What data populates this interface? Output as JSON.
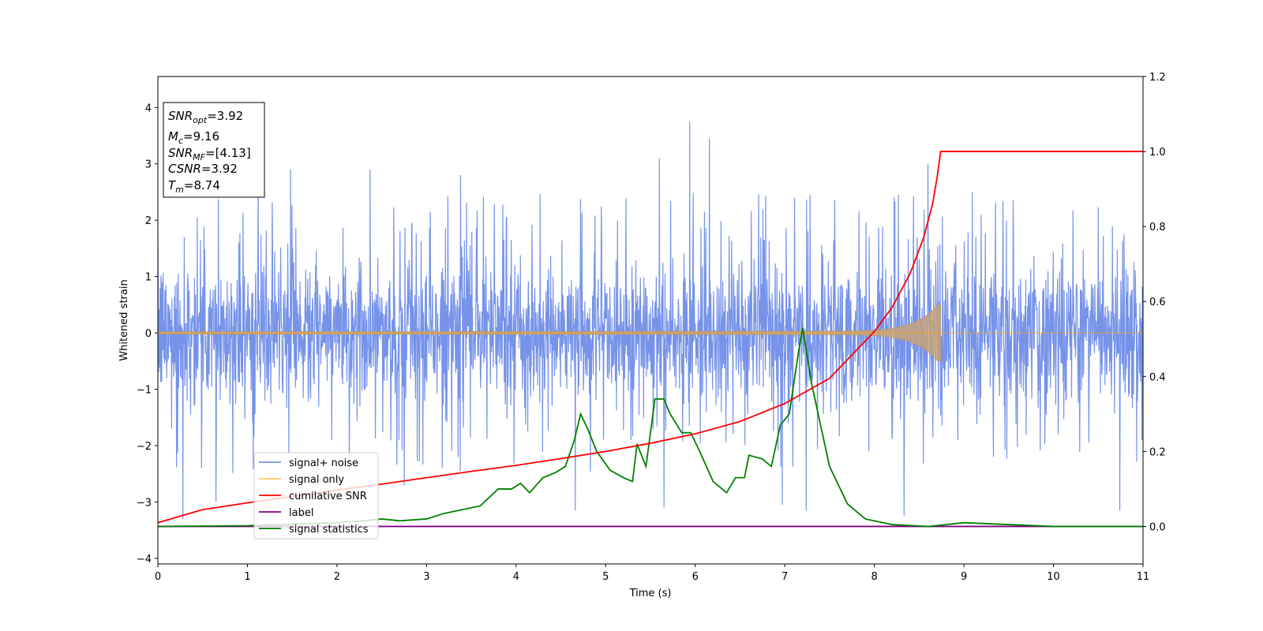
{
  "chart_data": {
    "type": "line",
    "xlabel": "Time (s)",
    "ylabel": "Whitened strain",
    "xlim": [
      0,
      11
    ],
    "ylim_left": [
      -4.1,
      4.55
    ],
    "ylim_right": [
      -0.1,
      1.2
    ],
    "x_ticks": [
      0,
      1,
      2,
      3,
      4,
      5,
      6,
      7,
      8,
      9,
      10,
      11
    ],
    "y_ticks_left": [
      -4,
      -3,
      -2,
      -1,
      0,
      1,
      2,
      3,
      4
    ],
    "y_ticks_right": [
      0.0,
      0.2,
      0.4,
      0.6,
      0.8,
      1.0,
      1.2
    ],
    "grid": false,
    "legend_position": "lower-left",
    "info_box": {
      "lines": [
        {
          "base": "SNR",
          "sub": "opt",
          "rest": "=3.92"
        },
        {
          "base": "M",
          "sub": "c",
          "rest": "=9.16"
        },
        {
          "base": "SNR",
          "sub": "MF",
          "rest": "=[4.13]"
        },
        {
          "base": "CSNR",
          "sub": "",
          "rest": "=3.92"
        },
        {
          "base": "T",
          "sub": "m",
          "rest": "=8.74"
        }
      ]
    },
    "series": [
      {
        "name": "signal+ noise",
        "axis": "left",
        "color": "#4169e1",
        "description_values": "approximately zero-mean noise, dense band within about ±1.4 with spikes up to about 3.75 and down to about -3.3",
        "spikes": [
          {
            "x": 0.28,
            "y": -3.3
          },
          {
            "x": 0.65,
            "y": -3.0
          },
          {
            "x": 1.12,
            "y": 2.7
          },
          {
            "x": 1.48,
            "y": 2.9
          },
          {
            "x": 2.37,
            "y": 2.9
          },
          {
            "x": 2.75,
            "y": -2.7
          },
          {
            "x": 3.38,
            "y": 2.8
          },
          {
            "x": 4.66,
            "y": -3.15
          },
          {
            "x": 5.6,
            "y": 3.1
          },
          {
            "x": 5.65,
            "y": -3.1
          },
          {
            "x": 5.94,
            "y": 3.75
          },
          {
            "x": 6.16,
            "y": 3.45
          },
          {
            "x": 6.97,
            "y": -3.05
          },
          {
            "x": 7.24,
            "y": -3.15
          },
          {
            "x": 8.33,
            "y": -3.25
          },
          {
            "x": 8.6,
            "y": 3.0
          },
          {
            "x": 10.74,
            "y": -3.15
          }
        ]
      },
      {
        "name": "signal only",
        "axis": "left",
        "color": "#ffa500",
        "chirp": {
          "t_merge": 8.74,
          "final_amplitude": 0.5,
          "start_amplitude": 0.02
        }
      },
      {
        "name": "cumilative SNR",
        "axis": "right",
        "color": "#ff0000",
        "x": [
          0,
          0.5,
          1,
          1.5,
          2,
          2.5,
          3,
          3.5,
          4,
          4.5,
          5,
          5.5,
          6,
          6.5,
          7,
          7.5,
          8,
          8.2,
          8.4,
          8.55,
          8.65,
          8.7,
          8.74,
          8.75,
          11
        ],
        "values": [
          0.01,
          0.045,
          0.063,
          0.08,
          0.097,
          0.113,
          0.13,
          0.147,
          0.163,
          0.181,
          0.2,
          0.222,
          0.247,
          0.28,
          0.328,
          0.395,
          0.52,
          0.585,
          0.675,
          0.77,
          0.86,
          0.93,
          1.0,
          1.0,
          1.0
        ]
      },
      {
        "name": "label",
        "axis": "right",
        "color": "#800080",
        "x": [
          0,
          11
        ],
        "values": [
          0.0,
          0.0
        ]
      },
      {
        "name": "signal statistics",
        "axis": "right",
        "color": "#008000",
        "x": [
          0,
          1,
          2,
          2.3,
          2.5,
          2.7,
          3.0,
          3.2,
          3.4,
          3.6,
          3.8,
          3.95,
          4.05,
          4.15,
          4.3,
          4.45,
          4.55,
          4.65,
          4.72,
          4.8,
          4.9,
          5.05,
          5.2,
          5.3,
          5.35,
          5.45,
          5.55,
          5.65,
          5.72,
          5.85,
          5.95,
          6.05,
          6.2,
          6.35,
          6.45,
          6.55,
          6.6,
          6.75,
          6.85,
          6.95,
          7.05,
          7.15,
          7.2,
          7.3,
          7.5,
          7.7,
          7.9,
          8.2,
          8.6,
          9,
          9.5,
          10,
          11
        ],
        "values": [
          0.0,
          0.002,
          0.01,
          0.015,
          0.02,
          0.015,
          0.02,
          0.035,
          0.045,
          0.055,
          0.1,
          0.1,
          0.115,
          0.09,
          0.13,
          0.145,
          0.16,
          0.23,
          0.3,
          0.26,
          0.2,
          0.15,
          0.13,
          0.12,
          0.22,
          0.16,
          0.34,
          0.34,
          0.3,
          0.25,
          0.25,
          0.2,
          0.12,
          0.09,
          0.13,
          0.13,
          0.19,
          0.18,
          0.16,
          0.27,
          0.3,
          0.46,
          0.53,
          0.38,
          0.16,
          0.06,
          0.02,
          0.005,
          0.0,
          0.01,
          0.005,
          0.0,
          0.0
        ]
      }
    ]
  }
}
